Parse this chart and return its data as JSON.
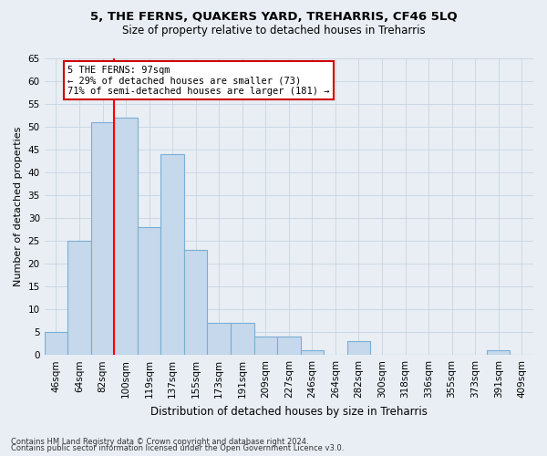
{
  "title1": "5, THE FERNS, QUAKERS YARD, TREHARRIS, CF46 5LQ",
  "title2": "Size of property relative to detached houses in Treharris",
  "xlabel": "Distribution of detached houses by size in Treharris",
  "ylabel": "Number of detached properties",
  "categories": [
    "46sqm",
    "64sqm",
    "82sqm",
    "100sqm",
    "119sqm",
    "137sqm",
    "155sqm",
    "173sqm",
    "191sqm",
    "209sqm",
    "227sqm",
    "246sqm",
    "264sqm",
    "282sqm",
    "300sqm",
    "318sqm",
    "336sqm",
    "355sqm",
    "373sqm",
    "391sqm",
    "409sqm"
  ],
  "values": [
    5,
    25,
    51,
    52,
    28,
    44,
    23,
    7,
    7,
    4,
    4,
    1,
    0,
    3,
    0,
    0,
    0,
    0,
    0,
    1,
    0
  ],
  "bar_color": "#c5d8ec",
  "bar_edge_color": "#7aafd4",
  "grid_color": "#c8d4e0",
  "red_line_x": 2.5,
  "annotation_line1": "5 THE FERNS: 97sqm",
  "annotation_line2": "← 29% of detached houses are smaller (73)",
  "annotation_line3": "71% of semi-detached houses are larger (181) →",
  "annotation_box_facecolor": "#ffffff",
  "annotation_box_edgecolor": "#cc0000",
  "footnote1": "Contains HM Land Registry data © Crown copyright and database right 2024.",
  "footnote2": "Contains public sector information licensed under the Open Government Licence v3.0.",
  "ylim_max": 65,
  "yticks": [
    0,
    5,
    10,
    15,
    20,
    25,
    30,
    35,
    40,
    45,
    50,
    55,
    60,
    65
  ],
  "fig_bg_color": "#e8eef4",
  "plot_bg_color": "#e8eef4",
  "title1_fontsize": 9.5,
  "title2_fontsize": 8.5,
  "ylabel_fontsize": 8.0,
  "xlabel_fontsize": 8.5,
  "tick_fontsize": 7.5,
  "annotation_fontsize": 7.5,
  "footnote_fontsize": 6.0
}
